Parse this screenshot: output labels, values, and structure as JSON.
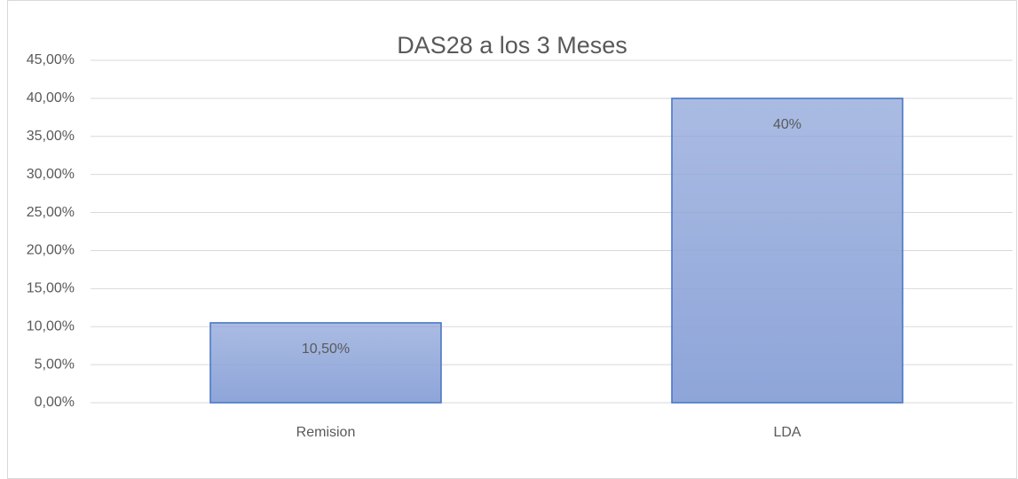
{
  "chart_data": {
    "type": "bar",
    "title": "DAS28 a los 3 Meses",
    "categories": [
      "Remision",
      "LDA"
    ],
    "values": [
      10.5,
      40
    ],
    "value_labels": [
      "10,50%",
      "40%"
    ],
    "color": "#8ea5d9",
    "edgecolor": "#4472c4",
    "ylim": [
      0,
      45
    ],
    "yticks": [
      {
        "value": 0,
        "label": "0,00%"
      },
      {
        "value": 5,
        "label": "5,00%"
      },
      {
        "value": 10,
        "label": "10,00%"
      },
      {
        "value": 15,
        "label": "15,00%"
      },
      {
        "value": 20,
        "label": "20,00%"
      },
      {
        "value": 25,
        "label": "25,00%"
      },
      {
        "value": 30,
        "label": "30,00%"
      },
      {
        "value": 35,
        "label": "35,00%"
      },
      {
        "value": 40,
        "label": "40,00%"
      },
      {
        "value": 45,
        "label": "45,00%"
      }
    ],
    "grid": true
  }
}
